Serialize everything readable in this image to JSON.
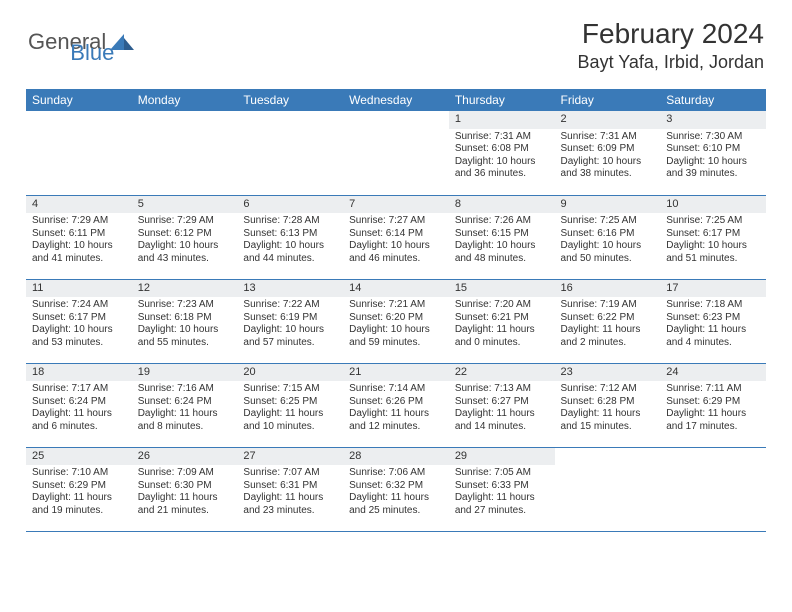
{
  "logo": {
    "general": "General",
    "blue": "Blue"
  },
  "title": "February 2024",
  "location": "Bayt Yafa, Irbid, Jordan",
  "header_bg": "#3a7ab8",
  "header_fg": "#ffffff",
  "daynum_bg": "#eceef0",
  "rule_color": "#3a7ab8",
  "days": [
    "Sunday",
    "Monday",
    "Tuesday",
    "Wednesday",
    "Thursday",
    "Friday",
    "Saturday"
  ],
  "weeks": [
    [
      null,
      null,
      null,
      null,
      {
        "n": "1",
        "sr": "Sunrise: 7:31 AM",
        "ss": "Sunset: 6:08 PM",
        "dl1": "Daylight: 10 hours",
        "dl2": "and 36 minutes."
      },
      {
        "n": "2",
        "sr": "Sunrise: 7:31 AM",
        "ss": "Sunset: 6:09 PM",
        "dl1": "Daylight: 10 hours",
        "dl2": "and 38 minutes."
      },
      {
        "n": "3",
        "sr": "Sunrise: 7:30 AM",
        "ss": "Sunset: 6:10 PM",
        "dl1": "Daylight: 10 hours",
        "dl2": "and 39 minutes."
      }
    ],
    [
      {
        "n": "4",
        "sr": "Sunrise: 7:29 AM",
        "ss": "Sunset: 6:11 PM",
        "dl1": "Daylight: 10 hours",
        "dl2": "and 41 minutes."
      },
      {
        "n": "5",
        "sr": "Sunrise: 7:29 AM",
        "ss": "Sunset: 6:12 PM",
        "dl1": "Daylight: 10 hours",
        "dl2": "and 43 minutes."
      },
      {
        "n": "6",
        "sr": "Sunrise: 7:28 AM",
        "ss": "Sunset: 6:13 PM",
        "dl1": "Daylight: 10 hours",
        "dl2": "and 44 minutes."
      },
      {
        "n": "7",
        "sr": "Sunrise: 7:27 AM",
        "ss": "Sunset: 6:14 PM",
        "dl1": "Daylight: 10 hours",
        "dl2": "and 46 minutes."
      },
      {
        "n": "8",
        "sr": "Sunrise: 7:26 AM",
        "ss": "Sunset: 6:15 PM",
        "dl1": "Daylight: 10 hours",
        "dl2": "and 48 minutes."
      },
      {
        "n": "9",
        "sr": "Sunrise: 7:25 AM",
        "ss": "Sunset: 6:16 PM",
        "dl1": "Daylight: 10 hours",
        "dl2": "and 50 minutes."
      },
      {
        "n": "10",
        "sr": "Sunrise: 7:25 AM",
        "ss": "Sunset: 6:17 PM",
        "dl1": "Daylight: 10 hours",
        "dl2": "and 51 minutes."
      }
    ],
    [
      {
        "n": "11",
        "sr": "Sunrise: 7:24 AM",
        "ss": "Sunset: 6:17 PM",
        "dl1": "Daylight: 10 hours",
        "dl2": "and 53 minutes."
      },
      {
        "n": "12",
        "sr": "Sunrise: 7:23 AM",
        "ss": "Sunset: 6:18 PM",
        "dl1": "Daylight: 10 hours",
        "dl2": "and 55 minutes."
      },
      {
        "n": "13",
        "sr": "Sunrise: 7:22 AM",
        "ss": "Sunset: 6:19 PM",
        "dl1": "Daylight: 10 hours",
        "dl2": "and 57 minutes."
      },
      {
        "n": "14",
        "sr": "Sunrise: 7:21 AM",
        "ss": "Sunset: 6:20 PM",
        "dl1": "Daylight: 10 hours",
        "dl2": "and 59 minutes."
      },
      {
        "n": "15",
        "sr": "Sunrise: 7:20 AM",
        "ss": "Sunset: 6:21 PM",
        "dl1": "Daylight: 11 hours",
        "dl2": "and 0 minutes."
      },
      {
        "n": "16",
        "sr": "Sunrise: 7:19 AM",
        "ss": "Sunset: 6:22 PM",
        "dl1": "Daylight: 11 hours",
        "dl2": "and 2 minutes."
      },
      {
        "n": "17",
        "sr": "Sunrise: 7:18 AM",
        "ss": "Sunset: 6:23 PM",
        "dl1": "Daylight: 11 hours",
        "dl2": "and 4 minutes."
      }
    ],
    [
      {
        "n": "18",
        "sr": "Sunrise: 7:17 AM",
        "ss": "Sunset: 6:24 PM",
        "dl1": "Daylight: 11 hours",
        "dl2": "and 6 minutes."
      },
      {
        "n": "19",
        "sr": "Sunrise: 7:16 AM",
        "ss": "Sunset: 6:24 PM",
        "dl1": "Daylight: 11 hours",
        "dl2": "and 8 minutes."
      },
      {
        "n": "20",
        "sr": "Sunrise: 7:15 AM",
        "ss": "Sunset: 6:25 PM",
        "dl1": "Daylight: 11 hours",
        "dl2": "and 10 minutes."
      },
      {
        "n": "21",
        "sr": "Sunrise: 7:14 AM",
        "ss": "Sunset: 6:26 PM",
        "dl1": "Daylight: 11 hours",
        "dl2": "and 12 minutes."
      },
      {
        "n": "22",
        "sr": "Sunrise: 7:13 AM",
        "ss": "Sunset: 6:27 PM",
        "dl1": "Daylight: 11 hours",
        "dl2": "and 14 minutes."
      },
      {
        "n": "23",
        "sr": "Sunrise: 7:12 AM",
        "ss": "Sunset: 6:28 PM",
        "dl1": "Daylight: 11 hours",
        "dl2": "and 15 minutes."
      },
      {
        "n": "24",
        "sr": "Sunrise: 7:11 AM",
        "ss": "Sunset: 6:29 PM",
        "dl1": "Daylight: 11 hours",
        "dl2": "and 17 minutes."
      }
    ],
    [
      {
        "n": "25",
        "sr": "Sunrise: 7:10 AM",
        "ss": "Sunset: 6:29 PM",
        "dl1": "Daylight: 11 hours",
        "dl2": "and 19 minutes."
      },
      {
        "n": "26",
        "sr": "Sunrise: 7:09 AM",
        "ss": "Sunset: 6:30 PM",
        "dl1": "Daylight: 11 hours",
        "dl2": "and 21 minutes."
      },
      {
        "n": "27",
        "sr": "Sunrise: 7:07 AM",
        "ss": "Sunset: 6:31 PM",
        "dl1": "Daylight: 11 hours",
        "dl2": "and 23 minutes."
      },
      {
        "n": "28",
        "sr": "Sunrise: 7:06 AM",
        "ss": "Sunset: 6:32 PM",
        "dl1": "Daylight: 11 hours",
        "dl2": "and 25 minutes."
      },
      {
        "n": "29",
        "sr": "Sunrise: 7:05 AM",
        "ss": "Sunset: 6:33 PM",
        "dl1": "Daylight: 11 hours",
        "dl2": "and 27 minutes."
      },
      null,
      null
    ]
  ]
}
